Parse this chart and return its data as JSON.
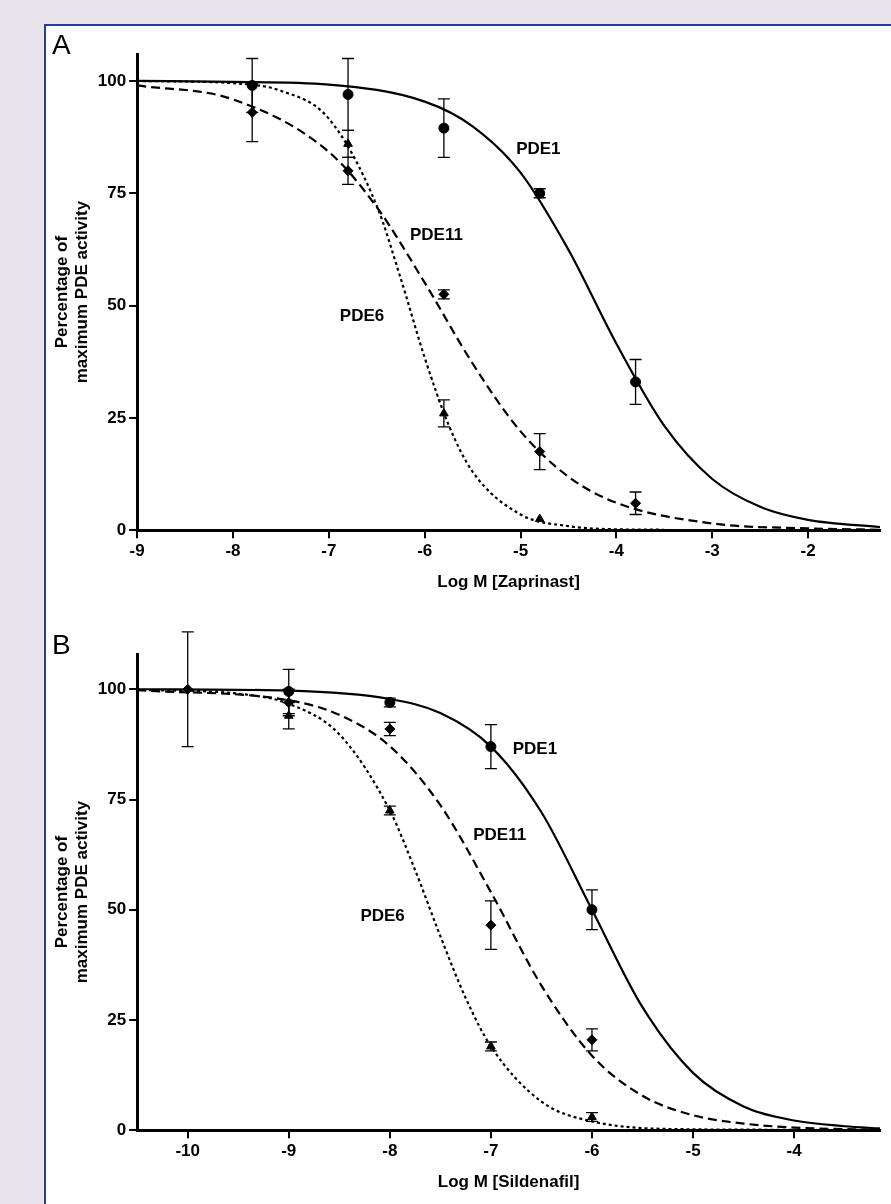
{
  "chart_data": [
    {
      "type": "scatter",
      "xlabel": "Log M [Zaprinast]",
      "ylabel": "Percentage of\nmaximum PDE activity",
      "xlim": [
        -9,
        -1.25
      ],
      "ylim": [
        0,
        106
      ],
      "xticks": [
        -9,
        -8,
        -7,
        -6,
        -5,
        -4,
        -3,
        -2
      ],
      "yticks": [
        0,
        25,
        50,
        75,
        100
      ],
      "grid": false,
      "legend": false,
      "annotations": [
        "A"
      ],
      "series": [
        {
          "type": "scatter",
          "color": "#000000",
          "marker": "circle",
          "x": [
            -7.8,
            -6.8,
            -5.8,
            -4.8,
            -3.8
          ],
          "values": [
            99,
            97,
            89.5,
            75,
            33
          ],
          "errors": [
            6,
            8,
            6.5,
            1,
            5
          ]
        },
        {
          "type": "scatter",
          "color": "#000000",
          "marker": "diamond",
          "x": [
            -7.8,
            -6.8,
            -5.8,
            -4.8,
            -3.8
          ],
          "values": [
            93,
            80,
            52.5,
            17.5,
            6
          ],
          "errors": [
            6.5,
            3,
            1,
            4,
            2.5
          ]
        },
        {
          "type": "scatter",
          "color": "#000000",
          "marker": "triangle",
          "x": [
            -6.8,
            -5.8,
            -4.8
          ],
          "values": [
            86,
            26,
            2.5
          ],
          "errors": [
            3,
            3,
            null
          ]
        },
        {
          "type": "line",
          "name": "PDE1",
          "color": "#000000",
          "line_style": "solid",
          "x": [
            -9,
            -8,
            -7,
            -6,
            -5.5,
            -5,
            -4.5,
            -4,
            -3.5,
            -3,
            -2.5,
            -2,
            -1.25
          ],
          "values": [
            100,
            99.8,
            99.2,
            95.4,
            89.9,
            79.6,
            62.4,
            41.5,
            23.2,
            11.4,
            5.2,
            2.3,
            0.7
          ]
        },
        {
          "type": "line",
          "name": "PDE11",
          "color": "#000000",
          "line_style": "dashed",
          "x": [
            -9,
            -8,
            -7,
            -6.5,
            -6,
            -5.5,
            -5,
            -4.5,
            -4,
            -3,
            -2,
            -1.25
          ],
          "values": [
            99,
            95.9,
            84.2,
            71.9,
            55.1,
            37.1,
            22,
            11.9,
            6.1,
            1.5,
            0.4,
            0.1
          ]
        },
        {
          "type": "line",
          "name": "PDE6",
          "color": "#000000",
          "line_style": "dotted",
          "x": [
            -9,
            -8,
            -7.5,
            -7,
            -6.5,
            -6.25,
            -6,
            -5.75,
            -5.5,
            -5,
            -4.5,
            -4,
            -3.5
          ],
          "values": [
            100,
            99.5,
            97.8,
            91.6,
            72.2,
            56,
            38.4,
            23.4,
            13,
            3.5,
            0.9,
            0.2,
            0.1
          ]
        }
      ]
    },
    {
      "type": "scatter",
      "xlabel": "Log M [Sildenafil]",
      "ylabel": "Percentage of\nmaximum PDE activity",
      "xlim": [
        -10.5,
        -3.15
      ],
      "ylim": [
        0,
        108
      ],
      "xticks": [
        -10,
        -9,
        -8,
        -7,
        -6,
        -5,
        -4
      ],
      "yticks": [
        0,
        25,
        50,
        75,
        100
      ],
      "grid": false,
      "legend": false,
      "annotations": [
        "B"
      ],
      "series": [
        {
          "type": "scatter",
          "color": "#000000",
          "marker": "circle",
          "x": [
            -9,
            -8,
            -7,
            -6
          ],
          "values": [
            99.5,
            97,
            87,
            50
          ],
          "errors": [
            5,
            1,
            5,
            4.5
          ]
        },
        {
          "type": "scatter",
          "color": "#000000",
          "marker": "diamond",
          "x": [
            -10,
            -9,
            -8,
            -7,
            -6
          ],
          "values": [
            100,
            97,
            91,
            46.5,
            20.5
          ],
          "errors": [
            13,
            3,
            1.5,
            5.5,
            2.5
          ]
        },
        {
          "type": "scatter",
          "color": "#000000",
          "marker": "triangle",
          "x": [
            -9,
            -8,
            -7,
            -6
          ],
          "values": [
            94,
            72.5,
            19,
            3
          ],
          "errors": [
            3,
            1,
            1,
            1
          ]
        },
        {
          "type": "line",
          "name": "PDE1",
          "color": "#000000",
          "line_style": "solid",
          "x": [
            -10.5,
            -9,
            -8,
            -7.5,
            -7,
            -6.5,
            -6,
            -5.5,
            -5,
            -4.5,
            -4,
            -3.5,
            -3.15
          ],
          "values": [
            100,
            99.7,
            97.8,
            94.6,
            87,
            72.1,
            50,
            27.9,
            13,
            5.4,
            2.2,
            0.9,
            0.4
          ]
        },
        {
          "type": "line",
          "name": "PDE11",
          "color": "#000000",
          "line_style": "dashed",
          "x": [
            -10.5,
            -9,
            -8.5,
            -8,
            -7.5,
            -7,
            -6.5,
            -6,
            -5.5,
            -5,
            -4.5,
            -4,
            -3.15
          ],
          "values": [
            99.8,
            97.5,
            94.2,
            87.1,
            73.7,
            54,
            32.8,
            16.9,
            7.8,
            3.4,
            1.5,
            0.6,
            0.1
          ]
        },
        {
          "type": "line",
          "name": "PDE6",
          "color": "#000000",
          "line_style": "dotted",
          "x": [
            -10.5,
            -9.5,
            -9,
            -8.5,
            -8,
            -7.75,
            -7.5,
            -7.25,
            -7,
            -6.5,
            -6,
            -5,
            -4
          ],
          "values": [
            99.9,
            99,
            96.7,
            89.8,
            72.5,
            59,
            44,
            30,
            19,
            6.5,
            2,
            0.2,
            0.1
          ]
        }
      ]
    }
  ]
}
